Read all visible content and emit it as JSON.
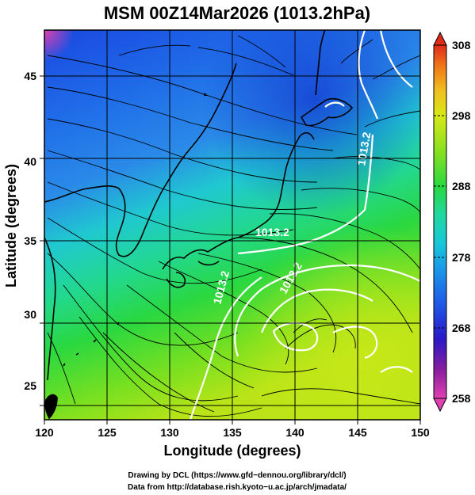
{
  "title": "MSM 00Z14Mar2026 (1013.2hPa)",
  "xlabel": "Longitude (degrees)",
  "ylabel": "Latitude  (degrees)",
  "x_ticks": [
    "120",
    "125",
    "130",
    "135",
    "140",
    "145",
    "150"
  ],
  "y_ticks": [
    "25",
    "30",
    "35",
    "40",
    "45"
  ],
  "colorbar_ticks": [
    "258",
    "268",
    "278",
    "288",
    "298",
    "308"
  ],
  "isobar_labels": [
    "1013.2",
    "1013.2",
    "1013.2",
    "1013.2"
  ],
  "credit_line1": "Drawing by DCL (https://www.gfd−dennou.org/library/dcl/)",
  "credit_line2": "Data from http://database.rish.kyoto−u.ac.jp/arch/jmadata/",
  "map": {
    "lon_range": [
      120,
      150
    ],
    "lat_range": [
      22.5,
      48
    ],
    "temperature_range_K": [
      258,
      308
    ],
    "colormap": [
      "#e040b0",
      "#8a1ea0",
      "#2a18c8",
      "#1f5ae8",
      "#1a9ae8",
      "#18c8d8",
      "#20d8a0",
      "#2ad840",
      "#88e020",
      "#d8e818",
      "#f0c020",
      "#f07818",
      "#e02a18"
    ],
    "land_color": "#000000",
    "isobar_color": "#ffffff",
    "streamline_color": "#000000"
  }
}
